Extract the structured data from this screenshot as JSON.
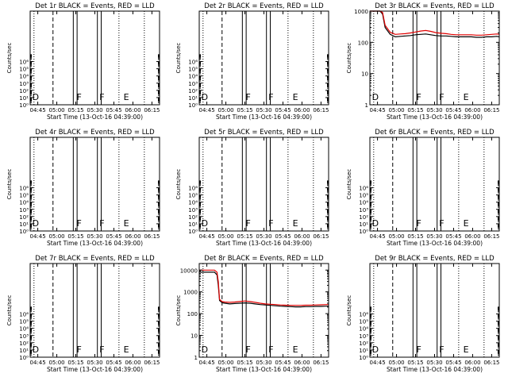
{
  "page_title": "",
  "common": {
    "xlabel": "Start Time (13-Oct-16 04:39:00)",
    "ylabel": "Counts/sec",
    "x_tick_labels": [
      "04:45",
      "05:00",
      "05:15",
      "05:30",
      "05:45",
      "06:00",
      "06:15"
    ],
    "x_tick_minutes": [
      6,
      21,
      36,
      51,
      66,
      81,
      96
    ],
    "xlim_minutes": [
      0,
      102
    ],
    "flare_lines_minutes": {
      "dashed": 18,
      "solid": [
        34,
        37,
        53,
        56
      ],
      "dotted": [
        3,
        70,
        90
      ]
    },
    "region_letters": [
      {
        "letter": "D",
        "minute": 1
      },
      {
        "letter": "F",
        "minute": 36
      },
      {
        "letter": "F",
        "minute": 54
      },
      {
        "letter": "E",
        "minute": 73
      }
    ],
    "colors": {
      "events": "#000000",
      "lld": "#e00000"
    }
  },
  "chart_data": [
    {
      "type": "line",
      "title": "Det 1r BLACK = Events, RED = LLD",
      "yscale": "log",
      "ylim": [
        1,
        10000000000000
      ],
      "y_tick_labels": [
        "10⁰",
        "10¹",
        "10²",
        "10³",
        "10⁴",
        "10⁵",
        "10⁶"
      ],
      "series": []
    },
    {
      "type": "line",
      "title": "Det 2r BLACK = Events, RED = LLD",
      "yscale": "log",
      "ylim": [
        1,
        10000000000000
      ],
      "y_tick_labels": [
        "10⁰",
        "10¹",
        "10²",
        "10³",
        "10⁴",
        "10⁵",
        "10⁶"
      ],
      "series": []
    },
    {
      "type": "line",
      "title": "Det 3r BLACK = Events, RED = LLD",
      "yscale": "log",
      "ylim": [
        1,
        1000
      ],
      "y_tick_labels": [
        "1",
        "10",
        "100",
        "1000"
      ],
      "series": [
        {
          "name": "Events",
          "color": "#000000",
          "x": [
            0,
            2,
            4,
            6,
            8,
            10,
            12,
            16,
            20,
            24,
            28,
            32,
            36,
            40,
            44,
            48,
            52,
            56,
            60,
            64,
            68,
            72,
            76,
            80,
            84,
            88,
            92,
            96,
            100,
            102
          ],
          "y": [
            1000,
            1000,
            1000,
            1000,
            1000,
            800,
            300,
            180,
            150,
            155,
            160,
            165,
            175,
            180,
            185,
            175,
            165,
            160,
            160,
            155,
            150,
            150,
            150,
            150,
            145,
            145,
            150,
            150,
            155,
            150
          ]
        },
        {
          "name": "LLD",
          "color": "#e00000",
          "x": [
            0,
            2,
            4,
            6,
            8,
            10,
            12,
            16,
            20,
            24,
            28,
            32,
            36,
            40,
            44,
            48,
            52,
            56,
            60,
            64,
            68,
            72,
            76,
            80,
            84,
            88,
            92,
            96,
            100,
            102
          ],
          "y": [
            1000,
            1000,
            1000,
            1000,
            1000,
            900,
            350,
            210,
            180,
            185,
            190,
            200,
            215,
            230,
            240,
            225,
            205,
            195,
            190,
            180,
            175,
            175,
            175,
            175,
            170,
            170,
            175,
            180,
            185,
            180
          ]
        }
      ]
    },
    {
      "type": "line",
      "title": "Det 4r BLACK = Events, RED = LLD",
      "yscale": "log",
      "ylim": [
        1,
        10000000000000
      ],
      "y_tick_labels": [
        "10⁰",
        "10¹",
        "10²",
        "10³",
        "10⁴",
        "10⁵",
        "10⁶"
      ],
      "series": []
    },
    {
      "type": "line",
      "title": "Det 5r BLACK = Events, RED = LLD",
      "yscale": "log",
      "ylim": [
        1,
        10000000000000
      ],
      "y_tick_labels": [
        "10⁰",
        "10¹",
        "10²",
        "10³",
        "10⁴",
        "10⁵",
        "10⁶"
      ],
      "series": []
    },
    {
      "type": "line",
      "title": "Det 6r BLACK = Events, RED = LLD",
      "yscale": "log",
      "ylim": [
        1,
        10000000000000
      ],
      "y_tick_labels": [
        "10⁰",
        "10¹",
        "10²",
        "10³",
        "10⁴",
        "10⁵",
        "10⁶"
      ],
      "series": []
    },
    {
      "type": "line",
      "title": "Det 7r BLACK = Events, RED = LLD",
      "yscale": "log",
      "ylim": [
        1,
        10000000000000
      ],
      "y_tick_labels": [
        "10⁰",
        "10¹",
        "10²",
        "10³",
        "10⁴",
        "10⁵",
        "10⁶"
      ],
      "series": []
    },
    {
      "type": "line",
      "title": "Det 8r BLACK = Events, RED = LLD",
      "yscale": "log",
      "ylim": [
        1,
        20000
      ],
      "y_tick_labels": [
        "1",
        "10",
        "100",
        "1000",
        "10000"
      ],
      "series": [
        {
          "name": "Events",
          "color": "#000000",
          "x": [
            0,
            2,
            4,
            6,
            8,
            10,
            12,
            14,
            15,
            16,
            18,
            20,
            24,
            28,
            32,
            36,
            40,
            44,
            48,
            52,
            56,
            60,
            64,
            68,
            72,
            76,
            80,
            84,
            88,
            92,
            96,
            100,
            102
          ],
          "y": [
            8000,
            8000,
            8000,
            8000,
            8000,
            8000,
            8000,
            6000,
            2000,
            400,
            320,
            300,
            280,
            290,
            300,
            310,
            300,
            280,
            260,
            250,
            240,
            230,
            220,
            215,
            210,
            205,
            205,
            210,
            210,
            215,
            215,
            220,
            220
          ]
        },
        {
          "name": "LLD",
          "color": "#e00000",
          "x": [
            0,
            2,
            4,
            6,
            8,
            10,
            12,
            14,
            15,
            16,
            18,
            20,
            24,
            28,
            32,
            36,
            40,
            44,
            48,
            52,
            56,
            60,
            64,
            68,
            72,
            76,
            80,
            84,
            88,
            92,
            96,
            100,
            102
          ],
          "y": [
            10000,
            10000,
            10000,
            10000,
            10000,
            10000,
            10000,
            8000,
            3000,
            450,
            360,
            340,
            330,
            340,
            360,
            380,
            360,
            330,
            300,
            280,
            270,
            260,
            250,
            245,
            240,
            240,
            240,
            245,
            245,
            250,
            255,
            260,
            260
          ]
        }
      ]
    },
    {
      "type": "line",
      "title": "Det 9r BLACK = Events, RED = LLD",
      "yscale": "log",
      "ylim": [
        1,
        10000000000000
      ],
      "y_tick_labels": [
        "10⁰",
        "10¹",
        "10²",
        "10³",
        "10⁴",
        "10⁵",
        "10⁶"
      ],
      "series": []
    }
  ]
}
